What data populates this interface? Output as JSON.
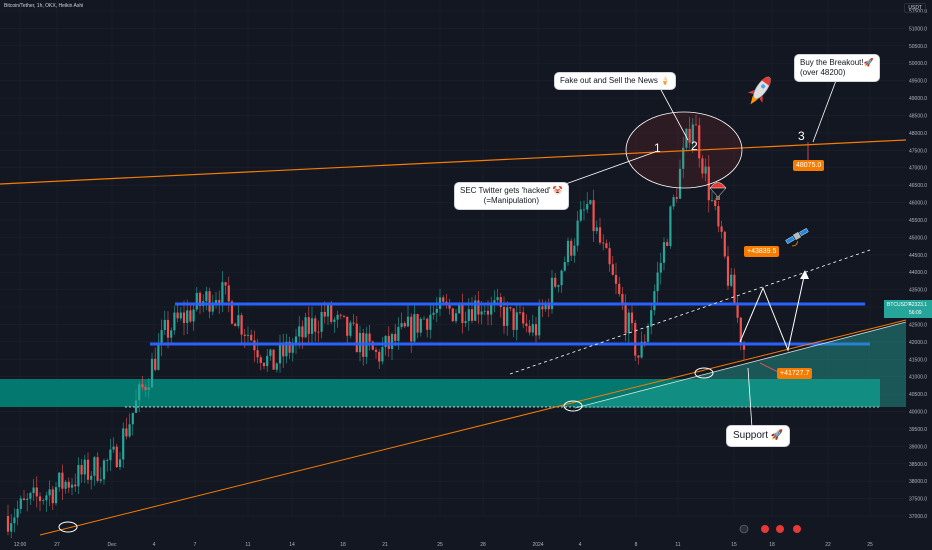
{
  "header": {
    "symbol_line": "Bitcoin/Tether, 1h, OKX, Heikin Ashi",
    "quote_currency": "USDT"
  },
  "price_axis": {
    "labels": [
      "51500.0",
      "51000.0",
      "50500.0",
      "50000.0",
      "49500.0",
      "49000.0",
      "48500.0",
      "48000.0",
      "47500.0",
      "47000.0",
      "46500.0",
      "46000.0",
      "45500.0",
      "45000.0",
      "44500.0",
      "44000.0",
      "43500.0",
      "43000.0",
      "42500.0",
      "42000.0",
      "41500.0",
      "41000.0",
      "40500.0",
      "40000.0",
      "39500.0",
      "39000.0",
      "38500.0",
      "38000.0",
      "37500.0",
      "37000.0"
    ],
    "current_symbol": "BTCUSDT",
    "current_price": "42323.1",
    "countdown": "56:09"
  },
  "time_axis": {
    "labels": [
      "12:00",
      "27",
      "Dec",
      "4",
      "7",
      "11",
      "14",
      "18",
      "21",
      "25",
      "28",
      "2024",
      "4",
      "8",
      "11",
      "15",
      "18",
      "22",
      "25"
    ]
  },
  "annotations": {
    "fake_out": "Fake out and Sell the News 🍦",
    "sec_line1": "SEC Twitter gets 'hacked' 🤡",
    "sec_line2": "(=Manipulation)",
    "breakout_line1": "Buy the Breakout!🚀",
    "breakout_line2": "(over 48200)",
    "support": "Support 🚀",
    "marker_1": "1",
    "marker_2": "2",
    "marker_3": "3"
  },
  "price_tags": {
    "target_high": "48075.0",
    "target_mid": "+43839.5",
    "target_low": "+41727.7"
  },
  "icons": [
    "rocket-icon",
    "parachute-icon",
    "satellite-icon"
  ],
  "colors": {
    "bull": "#26a69a",
    "bear": "#ef5350",
    "resistance_line": "#f57c00",
    "range_line": "#2962ff",
    "support_zone": "#00897b",
    "background": "#131722"
  },
  "chart_data": {
    "type": "line",
    "style": "heikin-ashi candles (approximate close path)",
    "title": "Bitcoin/Tether, 1h, OKX, Heikin Ashi",
    "xlabel": "",
    "ylabel": "",
    "x": [
      "27",
      "Dec",
      "4",
      "7",
      "11",
      "14",
      "18",
      "21",
      "25",
      "28",
      "2024",
      "4",
      "8",
      "11",
      "15"
    ],
    "series": [
      {
        "values": [
          37000,
          37900,
          38600,
          42300,
          43500,
          41300,
          42800,
          41600,
          42800,
          43100,
          42300,
          45900,
          41500,
          48500,
          41700
        ]
      }
    ],
    "ylim": [
      36800,
      51800
    ],
    "levels": {
      "range_top": 43100,
      "range_bottom": 42300,
      "support_zone": [
        40500,
        41300
      ]
    },
    "grid": true,
    "legend": "none"
  }
}
